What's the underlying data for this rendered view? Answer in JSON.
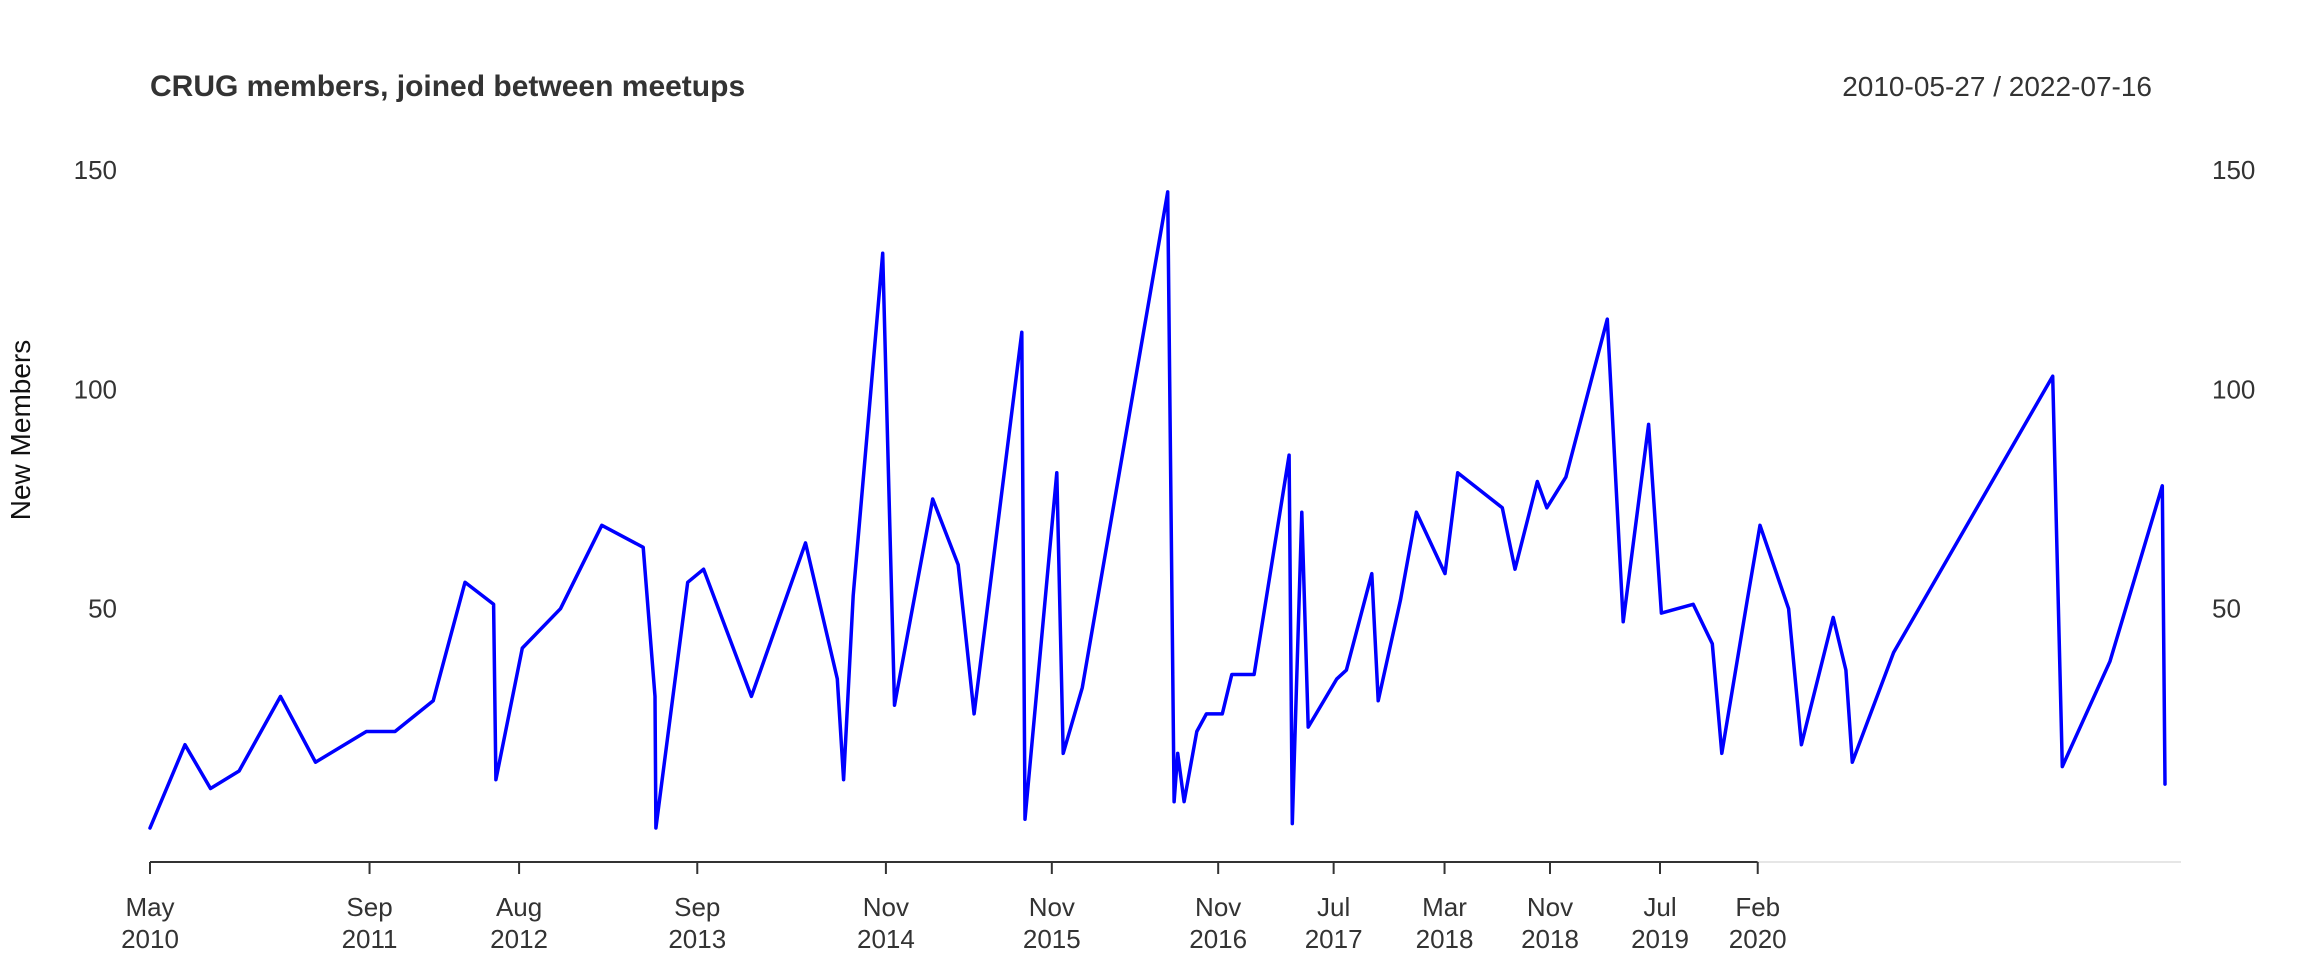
{
  "chart_data": {
    "type": "line",
    "title": "CRUG members, joined between meetups",
    "date_range": "2010-05-27 / 2022-07-16",
    "xlabel": "",
    "ylabel": "New Members",
    "ylim": [
      0,
      150
    ],
    "yticks": [
      50,
      100,
      150
    ],
    "xlim": [
      "2010-05-27",
      "2022-07-16"
    ],
    "line_color": "#0000ff",
    "axis_color": "#333333",
    "xticks": [
      {
        "date": "2010-05-27",
        "line1": "May",
        "line2": "2010"
      },
      {
        "date": "2011-09-22",
        "line1": "Sep",
        "line2": "2011"
      },
      {
        "date": "2012-08-16",
        "line1": "Aug",
        "line2": "2012"
      },
      {
        "date": "2013-09-12",
        "line1": "Sep",
        "line2": "2013"
      },
      {
        "date": "2014-11-01",
        "line1": "Nov",
        "line2": "2014"
      },
      {
        "date": "2015-11-01",
        "line1": "Nov",
        "line2": "2015"
      },
      {
        "date": "2016-11-01",
        "line1": "Nov",
        "line2": "2016"
      },
      {
        "date": "2017-07-13",
        "line1": "Jul",
        "line2": "2017"
      },
      {
        "date": "2018-03-14",
        "line1": "Mar",
        "line2": "2018"
      },
      {
        "date": "2018-11-01",
        "line1": "Nov",
        "line2": "2018"
      },
      {
        "date": "2019-07-01",
        "line1": "Jul",
        "line2": "2019"
      },
      {
        "date": "2020-02-01",
        "line1": "Feb",
        "line2": "2020"
      }
    ],
    "series": [
      {
        "values": [
          [
            "2010-05-27",
            0
          ],
          [
            "2010-08-12",
            19
          ],
          [
            "2010-10-07",
            9
          ],
          [
            "2010-12-09",
            13
          ],
          [
            "2011-03-10",
            30
          ],
          [
            "2011-05-26",
            15
          ],
          [
            "2011-09-15",
            22
          ],
          [
            "2011-11-17",
            22
          ],
          [
            "2012-02-09",
            29
          ],
          [
            "2012-04-19",
            56
          ],
          [
            "2012-06-21",
            51
          ],
          [
            "2012-06-26",
            11
          ],
          [
            "2012-08-23",
            41
          ],
          [
            "2012-11-15",
            50
          ],
          [
            "2013-02-14",
            69
          ],
          [
            "2013-05-16",
            64
          ],
          [
            "2013-06-11",
            30
          ],
          [
            "2013-06-13",
            0
          ],
          [
            "2013-08-22",
            56
          ],
          [
            "2013-09-26",
            59
          ],
          [
            "2014-01-09",
            30
          ],
          [
            "2014-05-08",
            65
          ],
          [
            "2014-07-17",
            34
          ],
          [
            "2014-07-31",
            11
          ],
          [
            "2014-08-21",
            53
          ],
          [
            "2014-10-25",
            131
          ],
          [
            "2014-11-20",
            28
          ],
          [
            "2015-02-12",
            75
          ],
          [
            "2015-04-09",
            60
          ],
          [
            "2015-05-14",
            26
          ],
          [
            "2015-08-27",
            113
          ],
          [
            "2015-09-03",
            2
          ],
          [
            "2015-11-12",
            81
          ],
          [
            "2015-11-26",
            17
          ],
          [
            "2016-01-07",
            32
          ],
          [
            "2016-07-13",
            145
          ],
          [
            "2016-07-27",
            6
          ],
          [
            "2016-08-04",
            17
          ],
          [
            "2016-08-18",
            6
          ],
          [
            "2016-09-15",
            22
          ],
          [
            "2016-10-06",
            26
          ],
          [
            "2016-11-10",
            26
          ],
          [
            "2016-12-01",
            35
          ],
          [
            "2017-01-19",
            35
          ],
          [
            "2017-04-06",
            85
          ],
          [
            "2017-04-13",
            1
          ],
          [
            "2017-05-04",
            72
          ],
          [
            "2017-05-18",
            23
          ],
          [
            "2017-07-20",
            34
          ],
          [
            "2017-08-10",
            36
          ],
          [
            "2017-10-05",
            58
          ],
          [
            "2017-10-19",
            29
          ],
          [
            "2017-12-07",
            52
          ],
          [
            "2018-01-11",
            72
          ],
          [
            "2018-03-15",
            58
          ],
          [
            "2018-04-12",
            81
          ],
          [
            "2018-07-19",
            73
          ],
          [
            "2018-08-16",
            59
          ],
          [
            "2018-10-04",
            79
          ],
          [
            "2018-10-25",
            73
          ],
          [
            "2018-12-06",
            80
          ],
          [
            "2019-03-07",
            116
          ],
          [
            "2019-04-11",
            47
          ],
          [
            "2019-06-06",
            92
          ],
          [
            "2019-07-04",
            49
          ],
          [
            "2019-09-12",
            51
          ],
          [
            "2019-10-24",
            42
          ],
          [
            "2019-11-14",
            17
          ],
          [
            "2020-01-09",
            52
          ],
          [
            "2020-02-06",
            69
          ],
          [
            "2020-04-09",
            50
          ],
          [
            "2020-05-07",
            19
          ],
          [
            "2020-07-16",
            48
          ],
          [
            "2020-08-13",
            36
          ],
          [
            "2020-08-27",
            15
          ],
          [
            "2020-11-26",
            40
          ],
          [
            "2021-11-11",
            103
          ],
          [
            "2021-12-02",
            14
          ],
          [
            "2022-03-17",
            38
          ],
          [
            "2022-07-10",
            78
          ],
          [
            "2022-07-16",
            10
          ]
        ]
      }
    ]
  }
}
